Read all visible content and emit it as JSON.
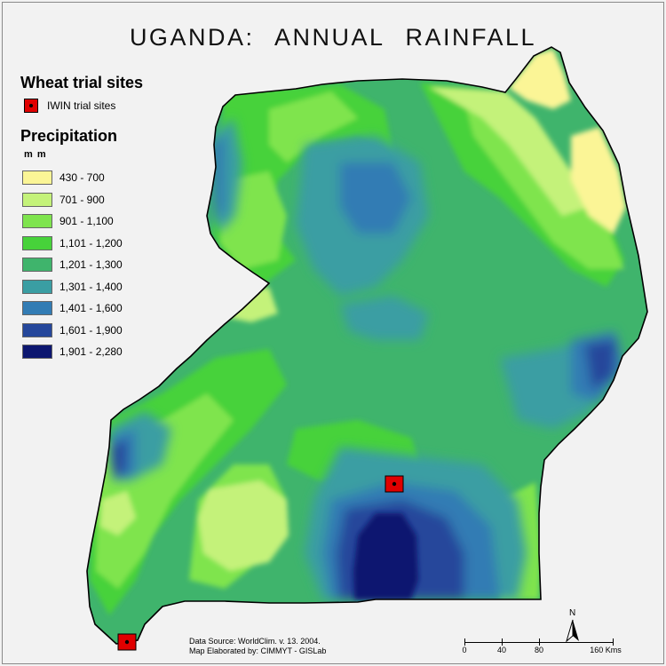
{
  "title": "UGANDA:  ANNUAL  RAINFALL",
  "sites_legend": {
    "title": "Wheat trial sites",
    "entry": "IWIN trial sites"
  },
  "precip_legend": {
    "title": "Precipitation",
    "unit": "m m",
    "classes": [
      {
        "label": "430 - 700",
        "color": "#fbf596"
      },
      {
        "label": "701 - 900",
        "color": "#c4f27a"
      },
      {
        "label": "901 - 1,100",
        "color": "#7fe44e"
      },
      {
        "label": "1,101 - 1,200",
        "color": "#47d23a"
      },
      {
        "label": "1,201 - 1,300",
        "color": "#3fb46c"
      },
      {
        "label": "1,301 - 1,400",
        "color": "#3a9ea3"
      },
      {
        "label": "1,401 - 1,600",
        "color": "#327cb4"
      },
      {
        "label": "1,601 - 1,900",
        "color": "#25479b"
      },
      {
        "label": "1,901 - 2,280",
        "color": "#0d1770"
      }
    ]
  },
  "source": {
    "line1": "Data Source: WorldClim. v. 13.  2004.",
    "line2": "Map Elaborated by: CIMMYT - GISLab"
  },
  "scale": {
    "labels": [
      "0",
      "40",
      "80",
      "160 Kms"
    ]
  },
  "north": "N"
}
